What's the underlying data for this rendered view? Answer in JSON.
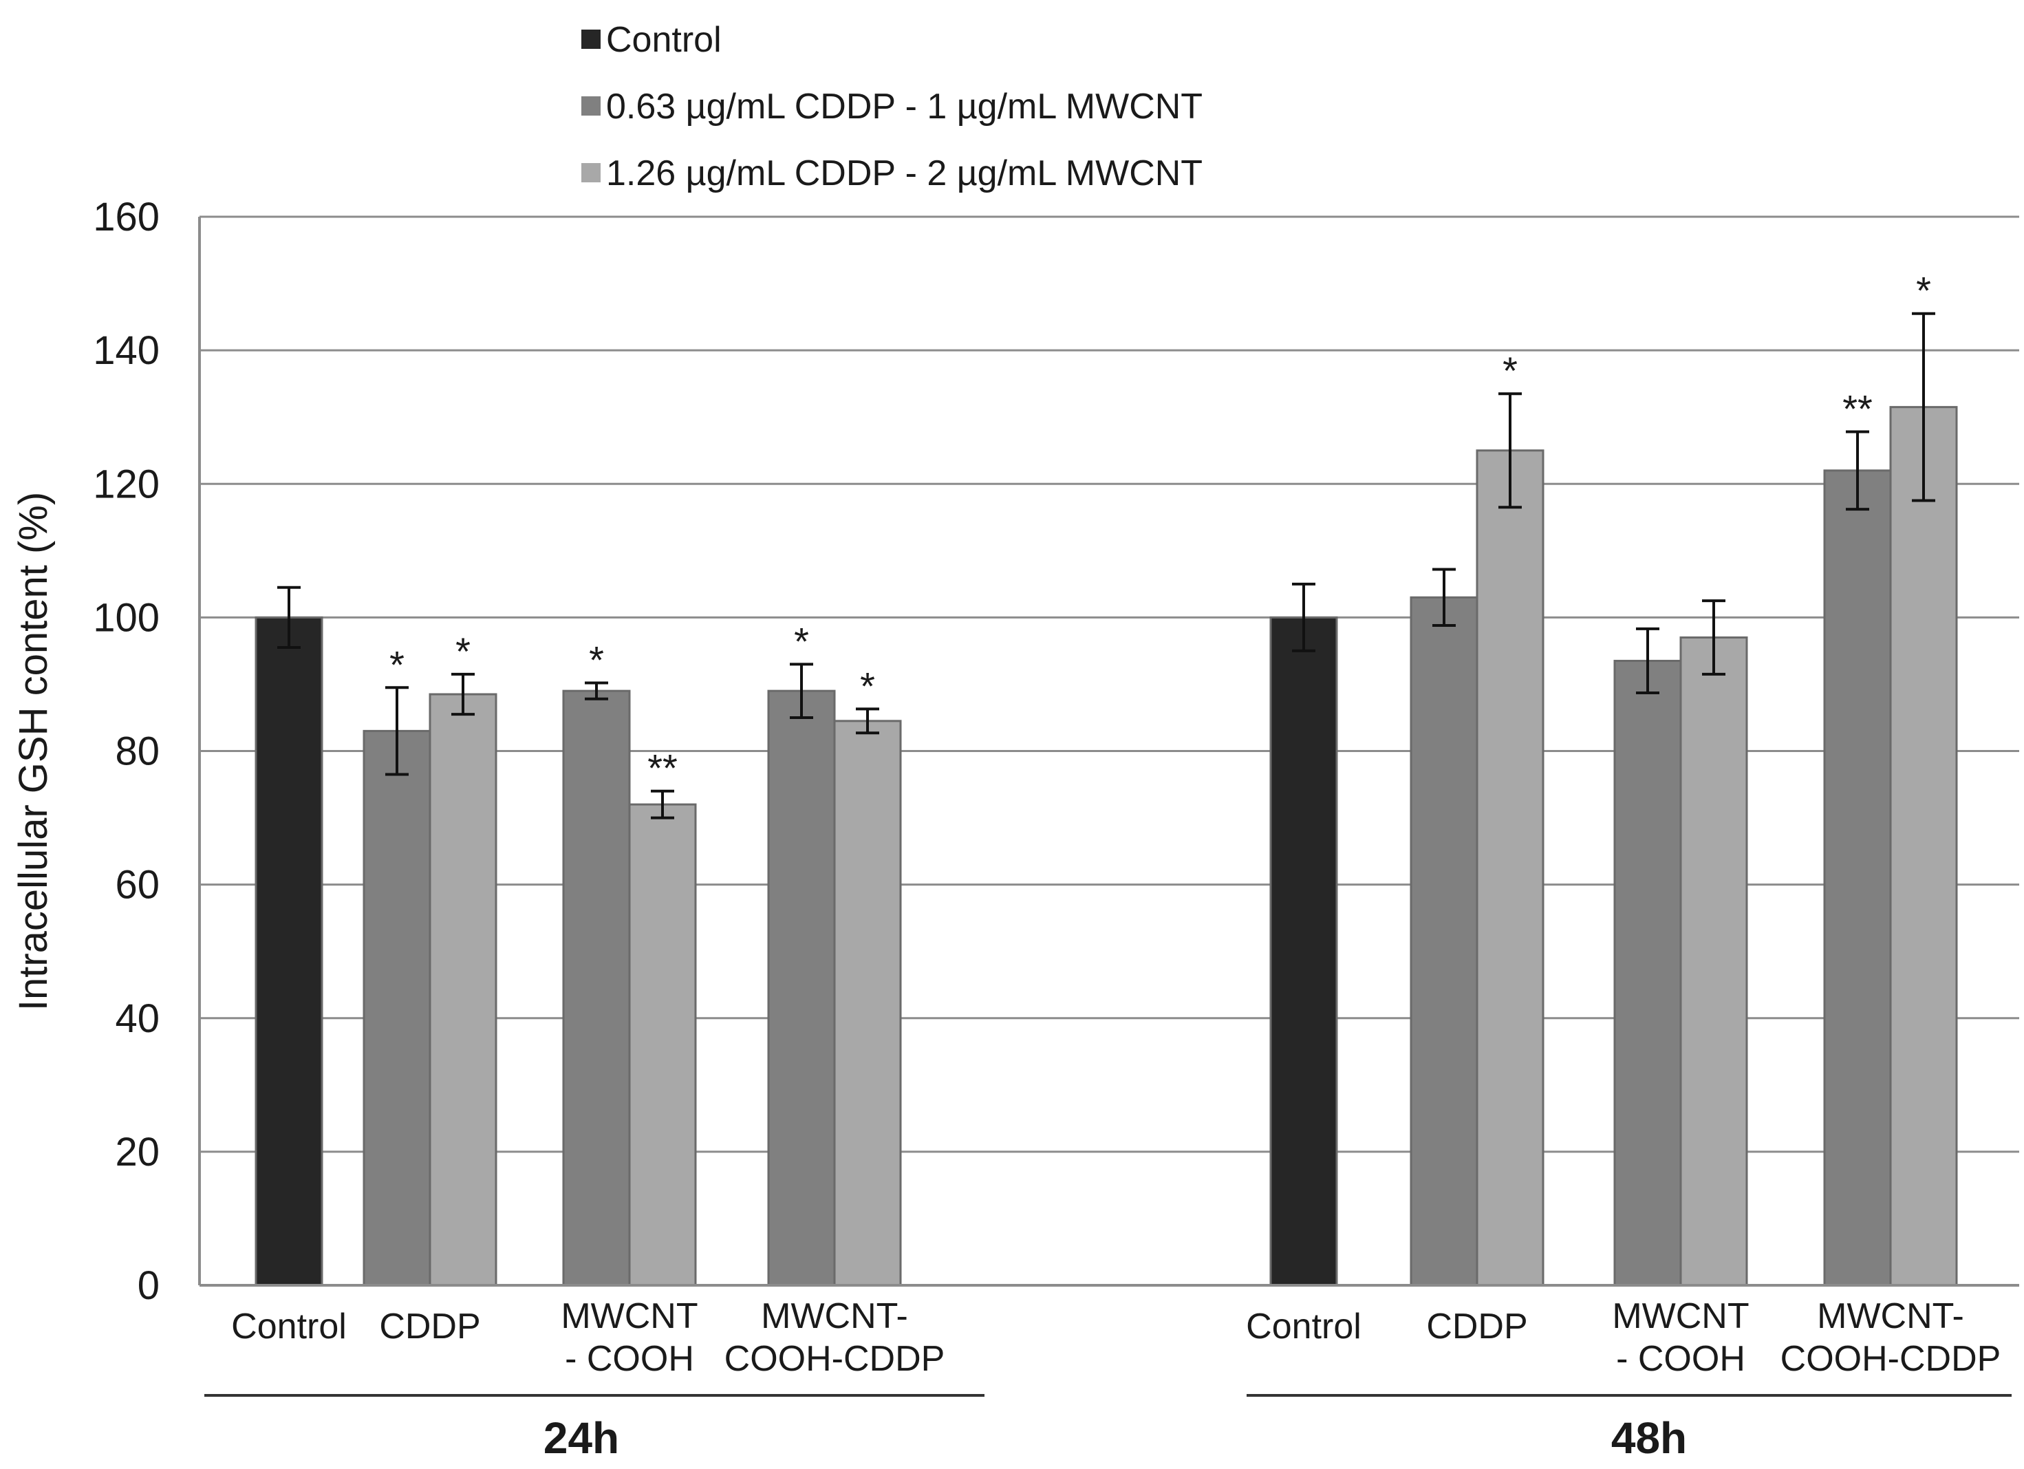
{
  "chart_data": {
    "type": "bar",
    "title": "",
    "xlabel": "",
    "ylabel": "Intracellular  GSH content  (%)",
    "ylim": [
      0,
      160
    ],
    "yticks": [
      0,
      20,
      40,
      60,
      80,
      100,
      120,
      140,
      160
    ],
    "grid": true,
    "legend_position": "top",
    "series_defs": [
      {
        "name": "Control",
        "color": "#262626"
      },
      {
        "name": "0.63 µg/mL CDDP - 1 µg/mL MWCNT",
        "color": "#808080"
      },
      {
        "name": "1.26 µg/mL CDDP - 2 µg/mL MWCNT",
        "color": "#a8a8a8"
      }
    ],
    "groups": [
      {
        "label": "24h",
        "categories": [
          {
            "label_lines": [
              "Control"
            ],
            "bars": [
              {
                "series": 0,
                "value": 100,
                "error": 4.5,
                "sig": ""
              }
            ]
          },
          {
            "label_lines": [
              "CDDP"
            ],
            "bars": [
              {
                "series": 1,
                "value": 83,
                "error": 6.5,
                "sig": "*"
              },
              {
                "series": 2,
                "value": 88.5,
                "error": 3,
                "sig": "*"
              }
            ]
          },
          {
            "label_lines": [
              "MWCNT",
              "- COOH"
            ],
            "bars": [
              {
                "series": 1,
                "value": 89,
                "error": 1.2,
                "sig": "*"
              },
              {
                "series": 2,
                "value": 72,
                "error": 2,
                "sig": "**"
              }
            ]
          },
          {
            "label_lines": [
              "MWCNT-",
              "COOH-CDDP"
            ],
            "bars": [
              {
                "series": 1,
                "value": 89,
                "error": 4,
                "sig": "*"
              },
              {
                "series": 2,
                "value": 84.5,
                "error": 1.8,
                "sig": "*"
              }
            ]
          }
        ]
      },
      {
        "label": "48h",
        "categories": [
          {
            "label_lines": [
              "Control"
            ],
            "bars": [
              {
                "series": 0,
                "value": 100,
                "error": 5,
                "sig": ""
              }
            ]
          },
          {
            "label_lines": [
              "CDDP"
            ],
            "bars": [
              {
                "series": 1,
                "value": 103,
                "error": 4.2,
                "sig": ""
              },
              {
                "series": 2,
                "value": 125,
                "error": 8.5,
                "sig": "*"
              }
            ]
          },
          {
            "label_lines": [
              "MWCNT",
              "- COOH"
            ],
            "bars": [
              {
                "series": 1,
                "value": 93.5,
                "error": 4.8,
                "sig": ""
              },
              {
                "series": 2,
                "value": 97,
                "error": 5.5,
                "sig": ""
              }
            ]
          },
          {
            "label_lines": [
              "MWCNT-",
              "COOH-CDDP"
            ],
            "bars": [
              {
                "series": 1,
                "value": 122,
                "error": 5.8,
                "sig": "**"
              },
              {
                "series": 2,
                "value": 131.5,
                "error": 14,
                "sig": "*"
              }
            ]
          }
        ]
      }
    ]
  }
}
